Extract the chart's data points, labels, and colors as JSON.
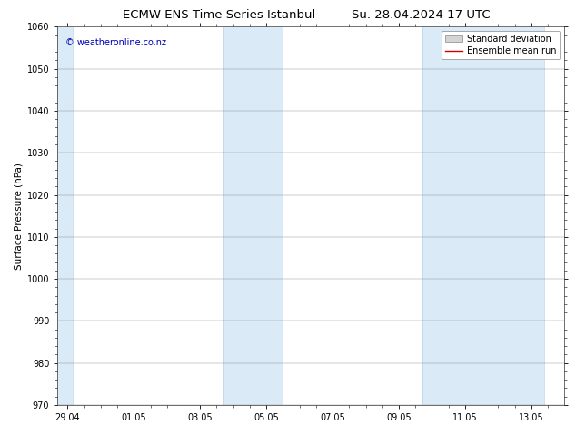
{
  "title_left": "ECMW-ENS Time Series Istanbul",
  "title_right": "Su. 28.04.2024 17 UTC",
  "ylabel": "Surface Pressure (hPa)",
  "ylim": [
    970,
    1060
  ],
  "yticks": [
    970,
    980,
    990,
    1000,
    1010,
    1020,
    1030,
    1040,
    1050,
    1060
  ],
  "xtick_labels": [
    "29.04",
    "01.05",
    "03.05",
    "05.05",
    "07.05",
    "09.05",
    "11.05",
    "13.05"
  ],
  "xtick_positions": [
    0,
    2,
    4,
    6,
    8,
    10,
    12,
    14
  ],
  "xlim_start": -0.3,
  "xlim_end": 15.0,
  "shaded_regions": [
    {
      "x_start": -0.3,
      "x_end": 0.15,
      "color": "#daeaf7"
    },
    {
      "x_start": 4.7,
      "x_end": 6.5,
      "color": "#daeaf7"
    },
    {
      "x_start": 10.7,
      "x_end": 14.4,
      "color": "#daeaf7"
    }
  ],
  "watermark_text": "© weatheronline.co.nz",
  "watermark_color": "#0000bb",
  "watermark_fontsize": 7,
  "legend_std_label": "Standard deviation",
  "legend_mean_label": "Ensemble mean run",
  "legend_std_facecolor": "#d4d4d4",
  "legend_std_edgecolor": "#888888",
  "legend_mean_color": "#cc0000",
  "bg_color": "#ffffff",
  "plot_bg_color": "#ffffff",
  "grid_color": "#888888",
  "tick_label_fontsize": 7,
  "axis_label_fontsize": 7.5,
  "title_fontsize": 9.5,
  "legend_fontsize": 7
}
